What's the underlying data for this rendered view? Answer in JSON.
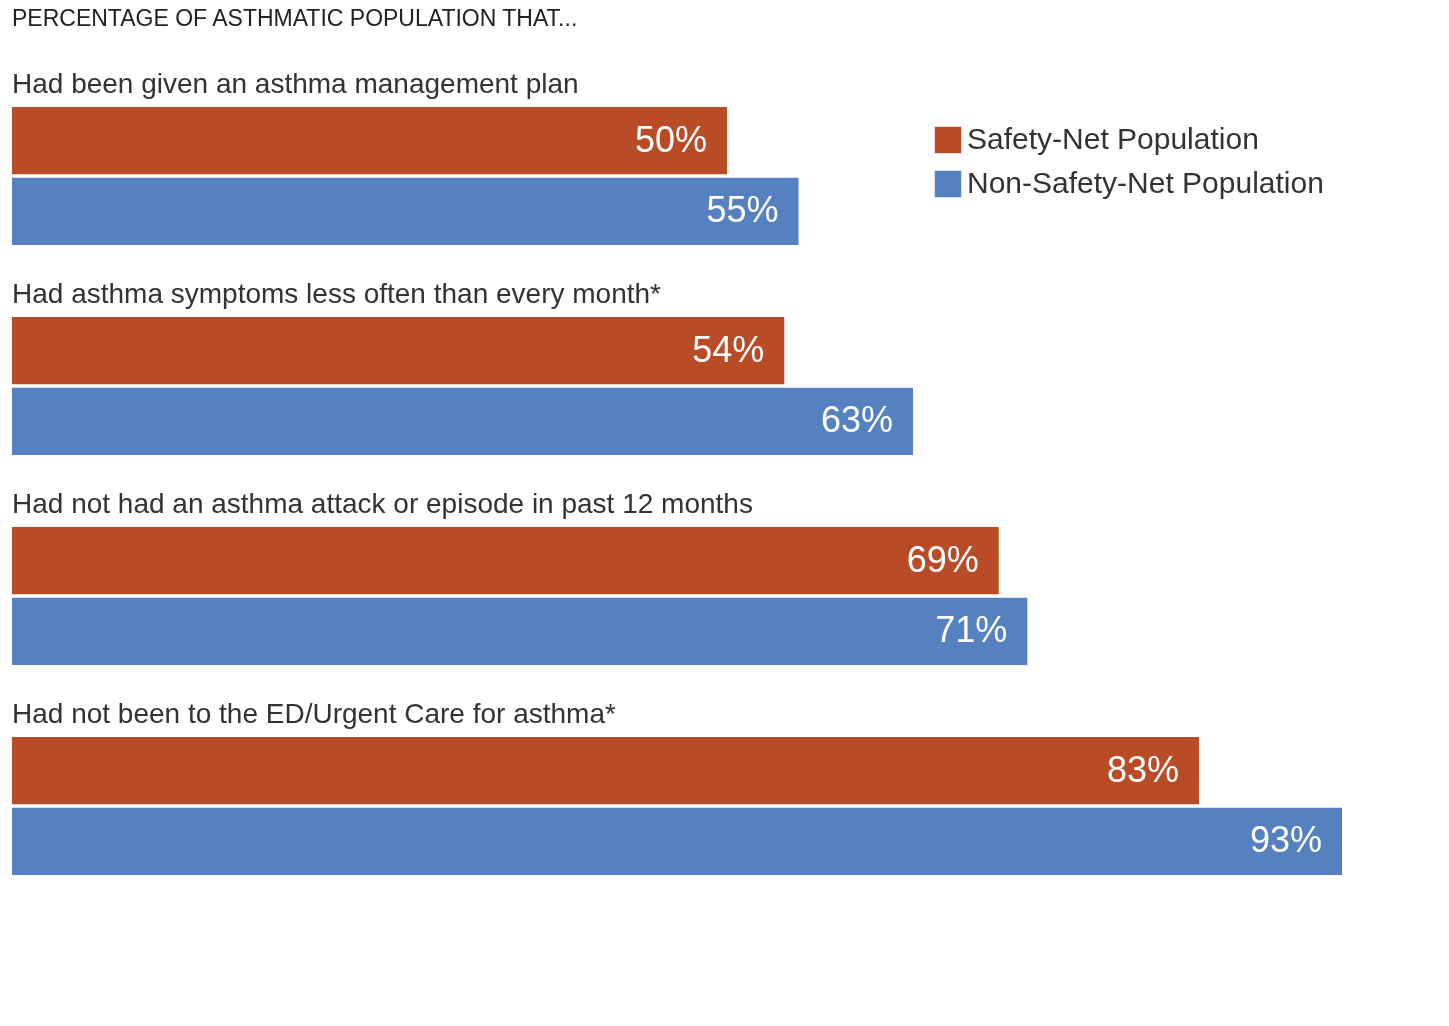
{
  "chart_data": {
    "type": "bar",
    "orientation": "horizontal",
    "title": "PERCENTAGE OF ASTHMATIC POPULATION THAT...",
    "categories": [
      "Had been given an asthma management plan",
      "Had asthma symptoms less often than every month*",
      "Had not had an asthma attack or episode in past 12 months",
      "Had not been to the ED/Urgent Care for asthma*"
    ],
    "series": [
      {
        "name": "Safety-Net Population",
        "color": "#b94c27",
        "values": [
          50,
          54,
          69,
          83
        ],
        "value_labels": [
          "50%",
          "54%",
          "69%",
          "83%"
        ]
      },
      {
        "name": "Non-Safety-Net Population",
        "color": "#5581c1",
        "values": [
          55,
          63,
          71,
          93
        ],
        "value_labels": [
          "55%",
          "63%",
          "71%",
          "93%"
        ]
      }
    ],
    "xlim": [
      0,
      93
    ],
    "tick_labels": false,
    "legend": "top right",
    "grid": false
  }
}
